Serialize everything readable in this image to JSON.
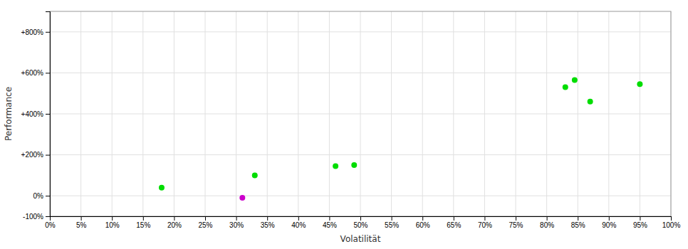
{
  "chart_data": {
    "type": "scatter",
    "x_label": "Volatilität",
    "y_label": "Performance",
    "xlim": [
      0.0,
      1.0
    ],
    "ylim": [
      -1.0,
      9.0
    ],
    "xticks": [
      {
        "value": 0.0,
        "label": "0%"
      },
      {
        "value": 0.05,
        "label": "5%"
      },
      {
        "value": 0.1,
        "label": "10%"
      },
      {
        "value": 0.15,
        "label": "15%"
      },
      {
        "value": 0.2,
        "label": "20%"
      },
      {
        "value": 0.25,
        "label": "25%"
      },
      {
        "value": 0.3,
        "label": "30%"
      },
      {
        "value": 0.35,
        "label": "35%"
      },
      {
        "value": 0.4,
        "label": "40%"
      },
      {
        "value": 0.45,
        "label": "45%"
      },
      {
        "value": 0.5,
        "label": "50%"
      },
      {
        "value": 0.55,
        "label": "55%"
      },
      {
        "value": 0.6,
        "label": "60%"
      },
      {
        "value": 0.65,
        "label": "65%"
      },
      {
        "value": 0.7,
        "label": "70%"
      },
      {
        "value": 0.75,
        "label": "75%"
      },
      {
        "value": 0.8,
        "label": "80%"
      },
      {
        "value": 0.85,
        "label": "85%"
      },
      {
        "value": 0.9,
        "label": "90%"
      },
      {
        "value": 0.95,
        "label": "95%"
      },
      {
        "value": 1.0,
        "label": "100%"
      }
    ],
    "yticks": [
      {
        "value": -1.0,
        "label": "-100%"
      },
      {
        "value": 0.0,
        "label": "0%"
      },
      {
        "value": 2.0,
        "label": "+200%"
      },
      {
        "value": 4.0,
        "label": "+400%"
      },
      {
        "value": 6.0,
        "label": "+600%"
      },
      {
        "value": 8.0,
        "label": "+800%"
      }
    ],
    "grid": true,
    "series": [
      {
        "color": "#00dd00",
        "x": [
          0.18,
          0.33,
          0.46,
          0.49,
          0.83,
          0.845,
          0.87,
          0.95
        ],
        "values": [
          0.4,
          1.0,
          1.45,
          1.5,
          5.3,
          5.65,
          4.6,
          5.45
        ]
      },
      {
        "color": "#cc00cc",
        "x": [
          0.31
        ],
        "values": [
          -0.1
        ]
      }
    ]
  }
}
